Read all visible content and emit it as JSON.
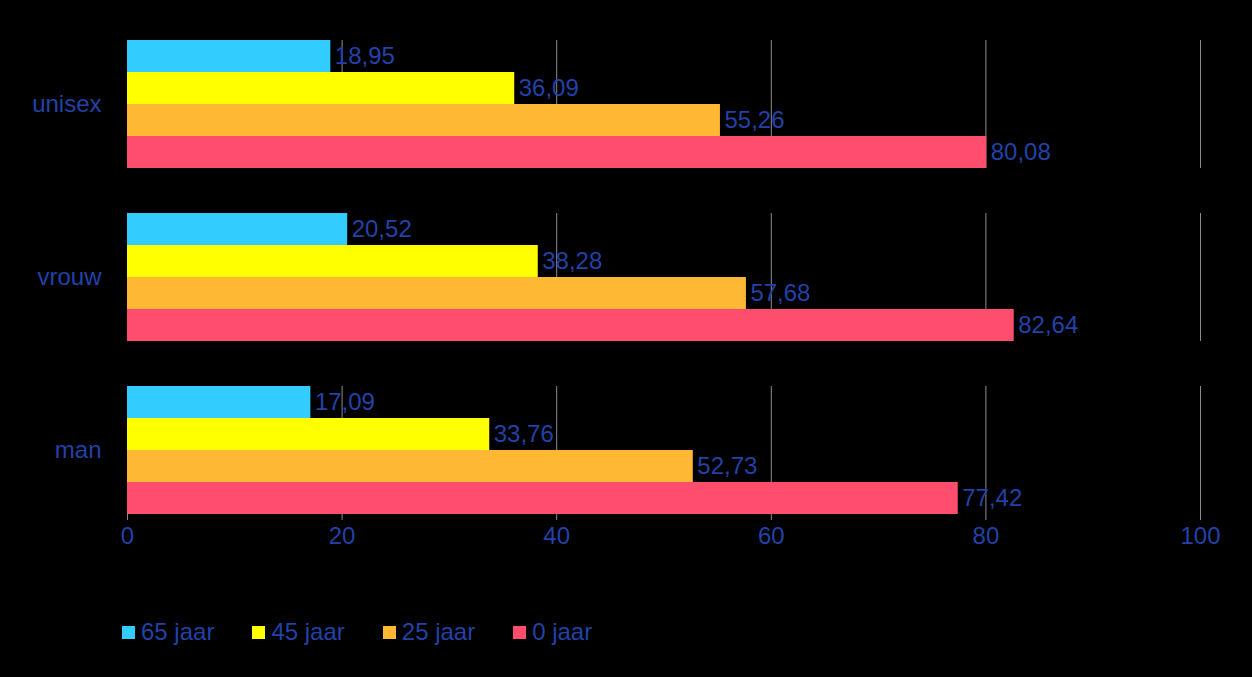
{
  "chart_data": {
    "type": "bar",
    "orientation": "horizontal",
    "categories": [
      "unisex",
      "vrouw",
      "man"
    ],
    "series": [
      {
        "name": "65 jaar",
        "color": "#33ccff",
        "values": [
          18.95,
          20.52,
          17.09
        ],
        "value_labels": [
          "18,95",
          "20,52",
          "17,09"
        ]
      },
      {
        "name": "45 jaar",
        "color": "#ffff00",
        "values": [
          36.09,
          38.28,
          33.76
        ],
        "value_labels": [
          "36,09",
          "38,28",
          "33,76"
        ]
      },
      {
        "name": "25 jaar",
        "color": "#ffb833",
        "values": [
          55.26,
          57.68,
          52.73
        ],
        "value_labels": [
          "55,26",
          "57,68",
          "52,73"
        ]
      },
      {
        "name": "0 jaar",
        "color": "#ff4d6d",
        "values": [
          80.08,
          82.64,
          77.42
        ],
        "value_labels": [
          "80,08",
          "82,64",
          "77,42"
        ]
      }
    ],
    "xlim": [
      0,
      100
    ],
    "xticks": [
      0,
      20,
      40,
      60,
      80,
      100
    ],
    "grid": true,
    "data_labels": true,
    "legend": "bottom"
  }
}
